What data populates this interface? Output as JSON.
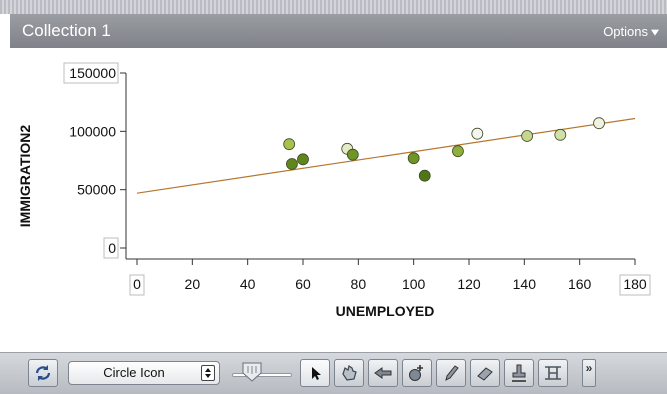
{
  "window": {
    "title": "Collection 1",
    "options_label": "Options"
  },
  "chart_data": {
    "type": "scatter",
    "title": "",
    "xlabel": "UNEMPLOYED",
    "ylabel": "IMMIGRATION2",
    "xlim": [
      0,
      180
    ],
    "ylim": [
      0,
      150000
    ],
    "x_ticks": [
      0,
      20,
      40,
      60,
      80,
      100,
      120,
      140,
      160,
      180
    ],
    "x_tick_labels": [
      "0",
      "20",
      "40",
      "60",
      "80",
      "100",
      "120",
      "140",
      "160",
      "180"
    ],
    "y_ticks": [
      0,
      50000,
      100000,
      150000
    ],
    "y_tick_labels": [
      "0",
      "50000",
      "100000",
      "150000"
    ],
    "grid": false,
    "points": [
      {
        "x": 55,
        "y": 89000,
        "color": "#a6c24c"
      },
      {
        "x": 56,
        "y": 72000,
        "color": "#5e861c"
      },
      {
        "x": 60,
        "y": 76000,
        "color": "#5e861c"
      },
      {
        "x": 76,
        "y": 85000,
        "color": "#e2ebc6"
      },
      {
        "x": 78,
        "y": 80000,
        "color": "#6f9526"
      },
      {
        "x": 100,
        "y": 77000,
        "color": "#6f9526"
      },
      {
        "x": 104,
        "y": 62000,
        "color": "#4f7714"
      },
      {
        "x": 116,
        "y": 83000,
        "color": "#8eb03a"
      },
      {
        "x": 123,
        "y": 98000,
        "color": "#f5f7ee"
      },
      {
        "x": 141,
        "y": 96000,
        "color": "#c4d78d"
      },
      {
        "x": 153,
        "y": 97000,
        "color": "#d1e0a4"
      },
      {
        "x": 167,
        "y": 107000,
        "color": "#eef2e0"
      }
    ],
    "fit_line": {
      "x": [
        0,
        180
      ],
      "y": [
        47000,
        111000
      ],
      "color": "#b5772e"
    }
  },
  "toolbar": {
    "rescale_icon": "rescale-icon",
    "select_value": "Circle Icon",
    "point_size_level": 0.2,
    "tools": [
      {
        "name": "pointer-tool",
        "icon": "arrow-cursor-icon"
      },
      {
        "name": "hand-tool",
        "icon": "hand-icon"
      },
      {
        "name": "lever-tool",
        "icon": "lever-icon"
      },
      {
        "name": "add-point-tool",
        "icon": "add-point-icon"
      },
      {
        "name": "pencil-tool",
        "icon": "pencil-icon"
      },
      {
        "name": "eraser-tool",
        "icon": "eraser-icon"
      },
      {
        "name": "stamp-tool",
        "icon": "stamp-icon"
      },
      {
        "name": "frame-tool",
        "icon": "frame-icon"
      }
    ]
  }
}
